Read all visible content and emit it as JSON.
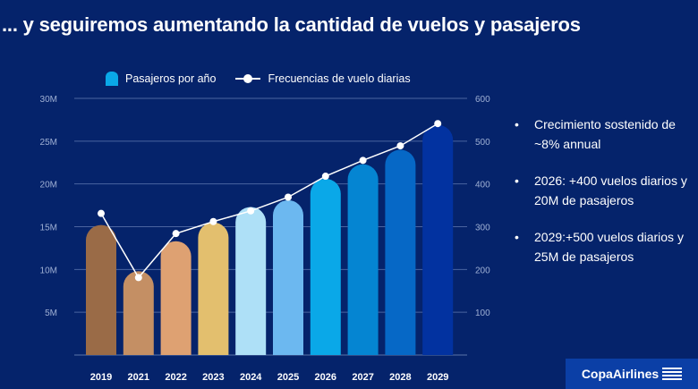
{
  "title": "... y seguiremos aumentando la cantidad de vuelos y pasajeros",
  "chart_data": {
    "type": "bar+line",
    "categories": [
      "2019",
      "2021",
      "2022",
      "2023",
      "2024",
      "2025",
      "2026",
      "2027",
      "2028",
      "2029"
    ],
    "series": [
      {
        "name": "Pasajeros por año",
        "type": "bar",
        "axis": "left",
        "values": [
          15.2,
          9.8,
          13.3,
          15.5,
          17.3,
          18.1,
          20.6,
          22.3,
          24.0,
          26.9
        ],
        "colors": [
          "#9a6b47",
          "#c48f64",
          "#dea172",
          "#e3bf6e",
          "#aee0f7",
          "#6cb8f0",
          "#0aa8e8",
          "#0585d2",
          "#0668c6",
          "#0232a0"
        ]
      },
      {
        "name": "Frecuencias de vuelo diarias",
        "type": "line",
        "axis": "right",
        "color": "#ffffff",
        "values": [
          331,
          181,
          284,
          312,
          337,
          369,
          418,
          455,
          489,
          541
        ]
      }
    ],
    "y_left": {
      "range": [
        0,
        30
      ],
      "ticks": [
        "5M",
        "10M",
        "15M",
        "20M",
        "25M",
        "30M"
      ],
      "tick_values": [
        5,
        10,
        15,
        20,
        25,
        30
      ]
    },
    "y_right": {
      "range": [
        0,
        600
      ],
      "ticks": [
        "100",
        "200",
        "300",
        "400",
        "500",
        "600"
      ],
      "tick_values": [
        100,
        200,
        300,
        400,
        500,
        600
      ]
    },
    "grid": true,
    "legend": "top"
  },
  "bullets": [
    "Crecimiento sostenido de ~8% annual",
    "2026: +400 vuelos diarios y 20M de pasajeros",
    "2029:+500 vuelos diarios y 25M de pasajeros"
  ],
  "logo": "CopaAirlines"
}
